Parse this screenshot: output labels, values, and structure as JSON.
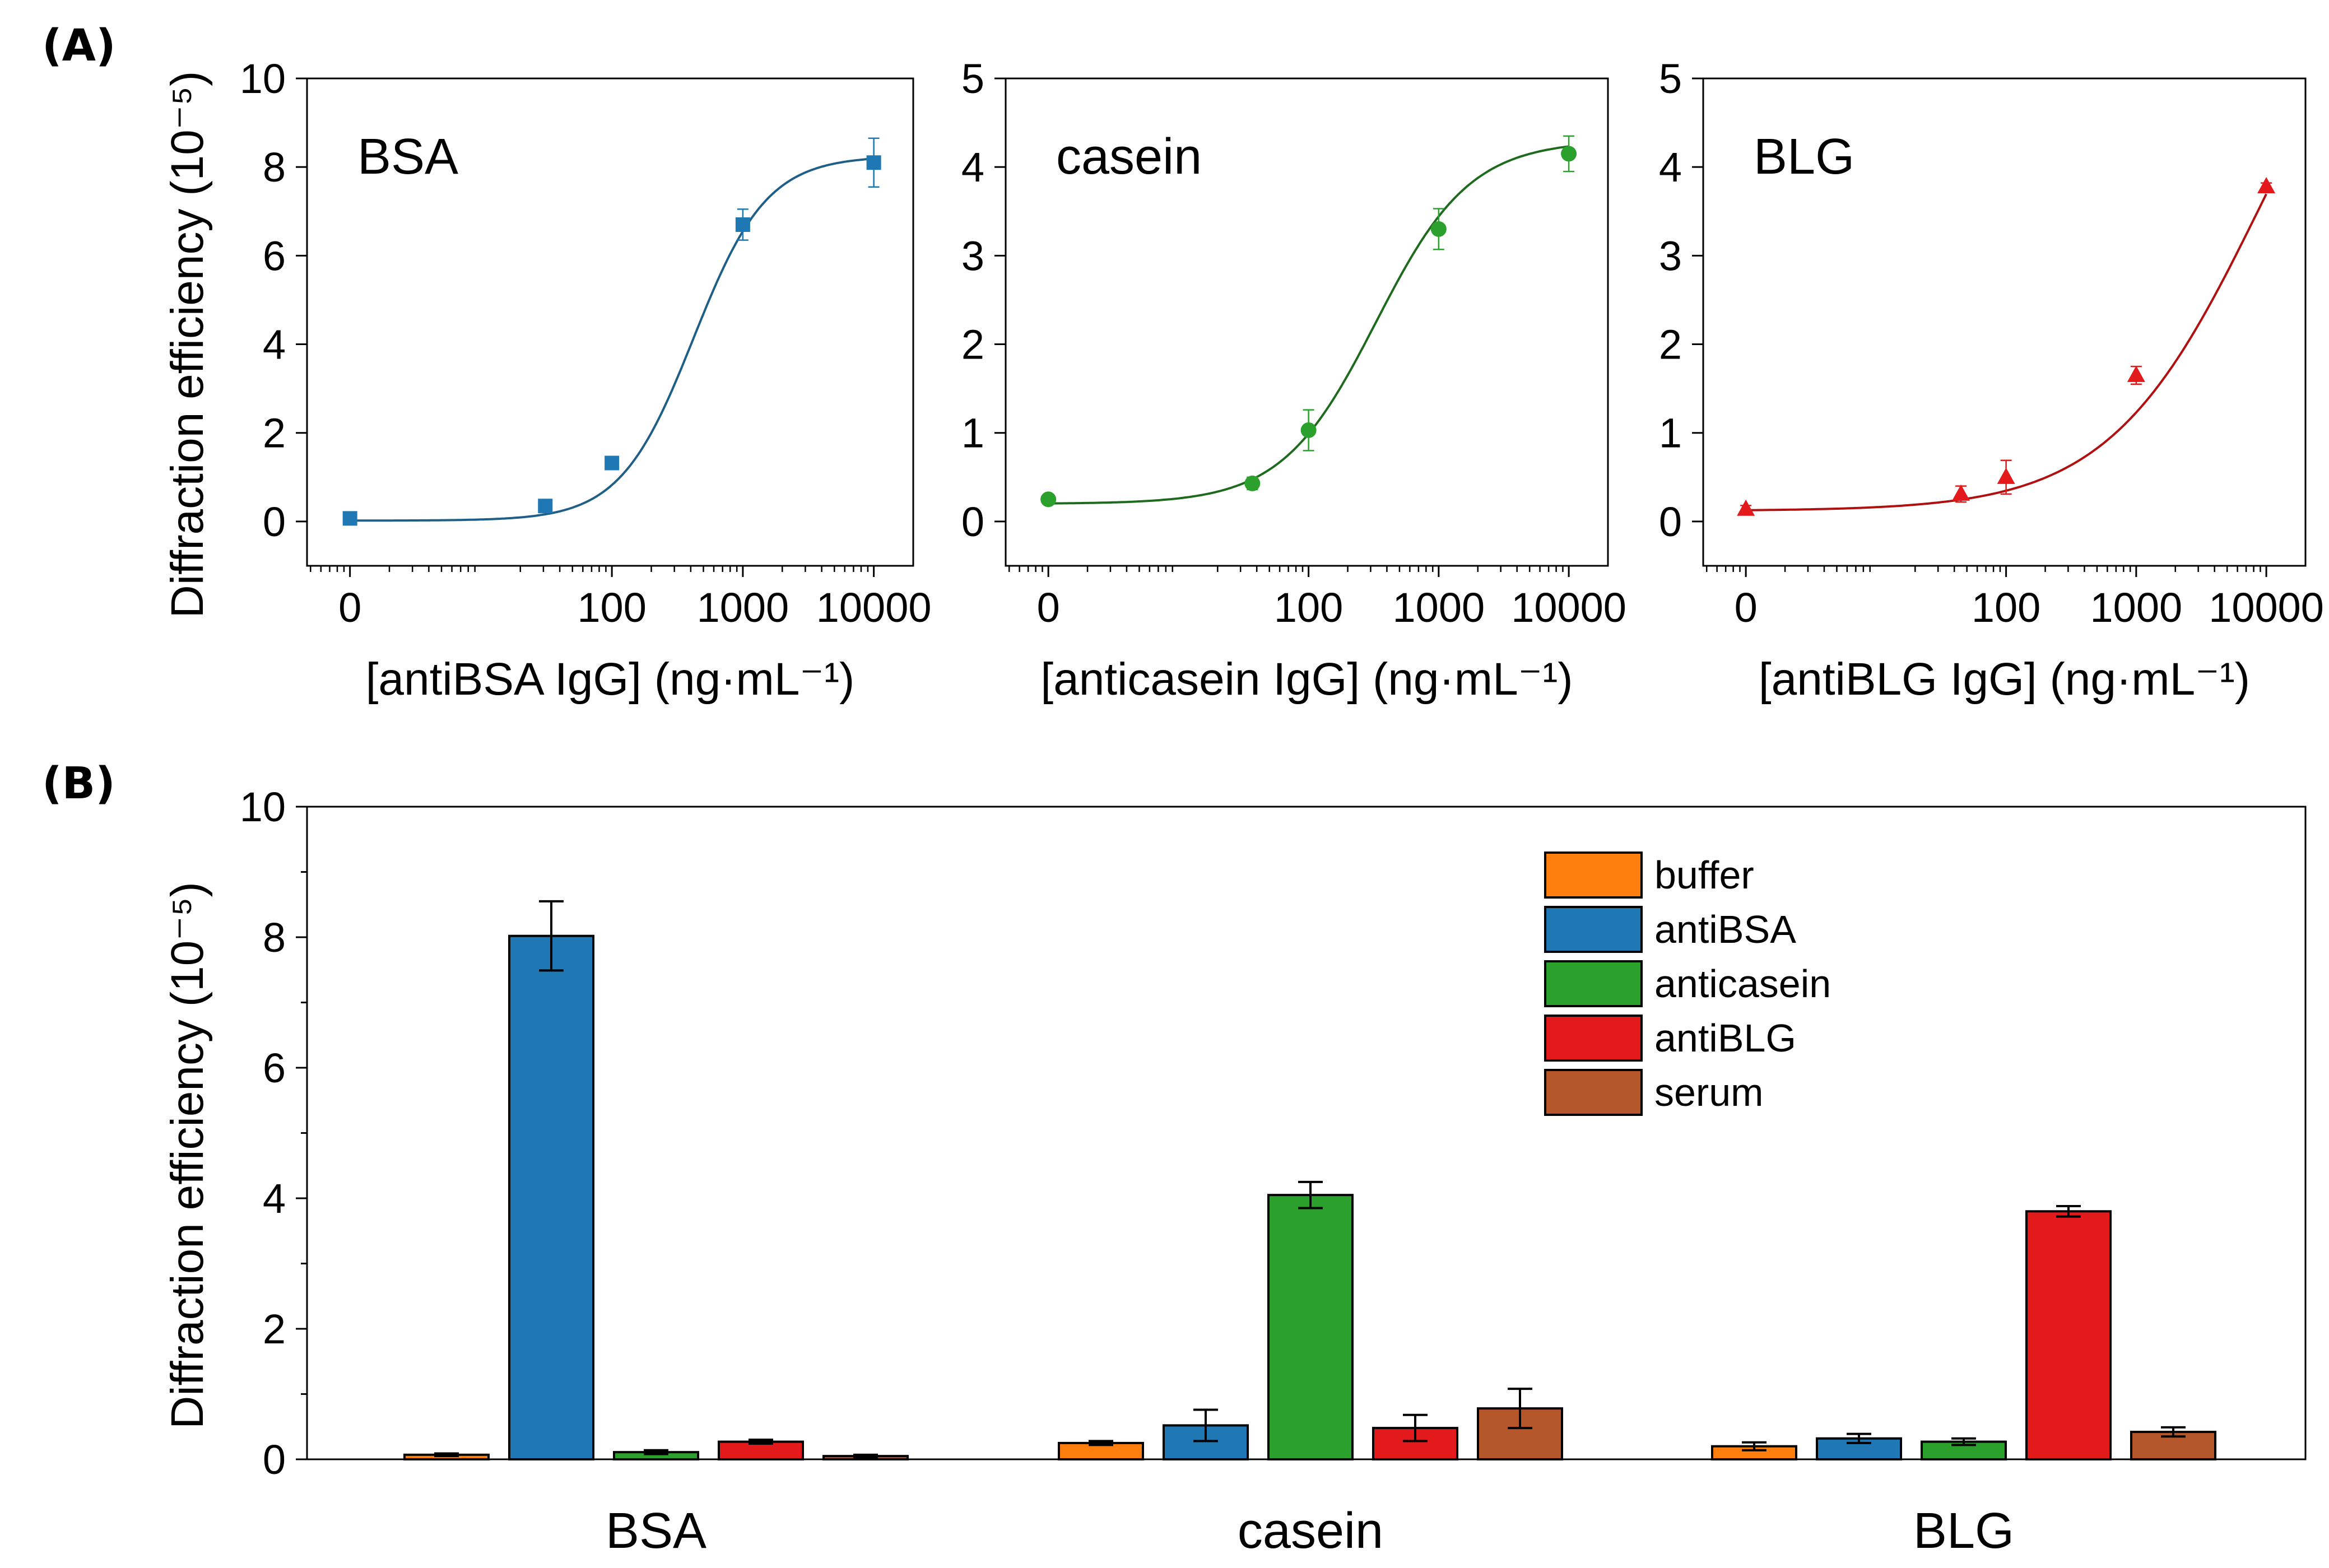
{
  "figure": {
    "panel_a_label": "(A)",
    "panel_b_label": "(B)"
  },
  "colors": {
    "buffer": "#ff7f0e",
    "antiBSA": "#1f77b4",
    "anticasein": "#2ca02c",
    "antiBLG": "#e31a1c",
    "serum": "#b5562b",
    "bsa_curve": "#1f5f87",
    "casein_curve": "#1e6b1e",
    "blg_curve": "#b01010"
  },
  "chart_data": [
    {
      "type": "scatter",
      "id": "bsa",
      "annotation": "BSA",
      "color": "#1f77b4",
      "curve_color": "#1f5f87",
      "marker": "square",
      "xlabel": "[antiBSA IgG] (ng·mL⁻¹)",
      "ylabel": "Diffraction efficiency (10⁻⁵)",
      "xscale": "log",
      "xlim": [
        0.47,
        20000
      ],
      "ylim": [
        -1,
        10
      ],
      "x_tick_values": [
        1,
        100,
        1000,
        10000
      ],
      "x_tick_labels": [
        "0",
        "100",
        "1000",
        "10000"
      ],
      "y_ticks": [
        0,
        2,
        4,
        6,
        8,
        10
      ],
      "y_tick_labels": [
        "0",
        "2",
        "4",
        "6",
        "8",
        "10"
      ],
      "x": [
        1,
        31,
        100,
        1000,
        10000
      ],
      "y": [
        0.07,
        0.35,
        1.32,
        6.7,
        8.1
      ],
      "err": [
        0.08,
        0.1,
        0.1,
        0.35,
        0.55
      ],
      "fit": {
        "bottom": 0.02,
        "top": 8.25,
        "x0": 420,
        "p": 1.55
      }
    },
    {
      "type": "scatter",
      "id": "casein",
      "annotation": "casein",
      "color": "#2ca02c",
      "curve_color": "#1e6b1e",
      "marker": "circle",
      "xlabel": "[anticasein IgG] (ng·mL⁻¹)",
      "ylabel": "",
      "xscale": "log",
      "xlim": [
        0.47,
        20000
      ],
      "ylim": [
        -0.5,
        5
      ],
      "x_tick_values": [
        1,
        100,
        1000,
        10000
      ],
      "x_tick_labels": [
        "0",
        "100",
        "1000",
        "10000"
      ],
      "y_ticks": [
        0,
        1,
        2,
        3,
        4,
        5
      ],
      "y_tick_labels": [
        "0",
        "1",
        "2",
        "3",
        "4",
        "5"
      ],
      "x": [
        1,
        37,
        100,
        1000,
        10000
      ],
      "y": [
        0.25,
        0.43,
        1.03,
        3.3,
        4.15
      ],
      "err": [
        0.04,
        0.07,
        0.23,
        0.23,
        0.2
      ],
      "fit": {
        "bottom": 0.2,
        "top": 4.3,
        "x0": 330,
        "p": 1.2
      }
    },
    {
      "type": "scatter",
      "id": "blg",
      "annotation": "BLG",
      "color": "#e31a1c",
      "curve_color": "#b01010",
      "marker": "triangle",
      "xlabel": "[antiBLG IgG] (ng·mL⁻¹)",
      "ylabel": "",
      "xscale": "log",
      "xlim": [
        0.47,
        20000
      ],
      "ylim": [
        -0.5,
        5
      ],
      "x_tick_values": [
        1,
        100,
        1000,
        10000
      ],
      "x_tick_labels": [
        "0",
        "100",
        "1000",
        "10000"
      ],
      "y_ticks": [
        0,
        1,
        2,
        3,
        4,
        5
      ],
      "y_tick_labels": [
        "0",
        "1",
        "2",
        "3",
        "4",
        "5"
      ],
      "x": [
        1,
        45,
        100,
        1000,
        10000
      ],
      "y": [
        0.14,
        0.31,
        0.5,
        1.65,
        3.78
      ],
      "err": [
        0.04,
        0.09,
        0.19,
        0.1,
        0.04
      ],
      "fit": {
        "bottom": 0.12,
        "top": 7.0,
        "x0": 9000,
        "p": 0.75
      }
    },
    {
      "type": "bar",
      "id": "selectivity",
      "ylabel": "Diffraction efficiency (10⁻⁵)",
      "ylim": [
        0,
        10
      ],
      "y_ticks": [
        0,
        2,
        4,
        6,
        8,
        10
      ],
      "y_tick_labels": [
        "0",
        "2",
        "4",
        "6",
        "8",
        "10"
      ],
      "categories": [
        "BSA",
        "casein",
        "BLG"
      ],
      "category_colors": [
        "#1f77b4",
        "#2ca02c",
        "#e31a1c"
      ],
      "legend_position": "top-right",
      "series": [
        {
          "name": "buffer",
          "color": "#ff7f0e",
          "values": [
            0.07,
            0.25,
            0.2
          ],
          "err": [
            0.02,
            0.03,
            0.06
          ]
        },
        {
          "name": "antiBSA",
          "color": "#1f77b4",
          "values": [
            8.02,
            0.52,
            0.32
          ],
          "err": [
            0.53,
            0.24,
            0.07
          ]
        },
        {
          "name": "anticasein",
          "color": "#2ca02c",
          "values": [
            0.11,
            4.05,
            0.27
          ],
          "err": [
            0.03,
            0.2,
            0.05
          ]
        },
        {
          "name": "antiBLG",
          "color": "#e31a1c",
          "values": [
            0.27,
            0.48,
            3.8
          ],
          "err": [
            0.03,
            0.2,
            0.08
          ]
        },
        {
          "name": "serum",
          "color": "#b5562b",
          "values": [
            0.05,
            0.78,
            0.42
          ],
          "err": [
            0.02,
            0.3,
            0.07
          ]
        }
      ]
    }
  ]
}
